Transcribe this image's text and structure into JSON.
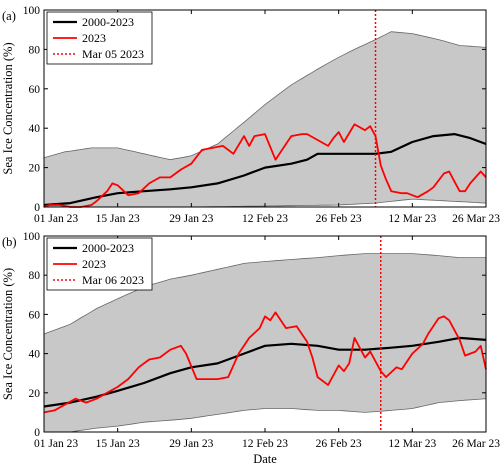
{
  "chart_data": [
    {
      "type": "line",
      "panel_label": "(a)",
      "ylabel": "Sea Ice Concentration (%)",
      "xlabel": "",
      "ylim": [
        0,
        100
      ],
      "yticks": [
        0,
        20,
        40,
        60,
        80,
        100
      ],
      "xlim": [
        "2023-01-01",
        "2023-03-26"
      ],
      "xticks": [
        {
          "date": "2023-01-01",
          "label": "01 Jan 23"
        },
        {
          "date": "2023-01-15",
          "label": "15 Jan 23"
        },
        {
          "date": "2023-01-29",
          "label": "29 Jan 23"
        },
        {
          "date": "2023-02-12",
          "label": "12 Feb 23"
        },
        {
          "date": "2023-02-26",
          "label": "26 Feb 23"
        },
        {
          "date": "2023-03-12",
          "label": "12 Mar 23"
        },
        {
          "date": "2023-03-26",
          "label": "26 Mar 23"
        }
      ],
      "legend": {
        "position": "top-left",
        "entries": [
          "2000-2023",
          "2023",
          "Mar 05 2023"
        ]
      },
      "band": {
        "color": "#c8c8c8",
        "upper": [
          [
            "2023-01-01",
            25
          ],
          [
            "2023-01-05",
            28
          ],
          [
            "2023-01-10",
            30
          ],
          [
            "2023-01-15",
            30
          ],
          [
            "2023-01-20",
            27
          ],
          [
            "2023-01-25",
            24
          ],
          [
            "2023-01-29",
            26
          ],
          [
            "2023-02-03",
            32
          ],
          [
            "2023-02-08",
            43
          ],
          [
            "2023-02-12",
            52
          ],
          [
            "2023-02-17",
            62
          ],
          [
            "2023-02-22",
            70
          ],
          [
            "2023-02-26",
            76
          ],
          [
            "2023-03-01",
            80
          ],
          [
            "2023-03-05",
            85
          ],
          [
            "2023-03-08",
            89
          ],
          [
            "2023-03-12",
            88
          ],
          [
            "2023-03-17",
            85
          ],
          [
            "2023-03-21",
            82
          ],
          [
            "2023-03-26",
            81
          ]
        ],
        "lower": [
          [
            "2023-01-01",
            0
          ],
          [
            "2023-01-15",
            0
          ],
          [
            "2023-01-29",
            0
          ],
          [
            "2023-02-12",
            0.5
          ],
          [
            "2023-02-26",
            1
          ],
          [
            "2023-03-05",
            2
          ],
          [
            "2023-03-12",
            4
          ],
          [
            "2023-03-19",
            3
          ],
          [
            "2023-03-26",
            2
          ]
        ]
      },
      "series": [
        {
          "name": "2000-2023",
          "color": "#000000",
          "points": [
            [
              "2023-01-01",
              1
            ],
            [
              "2023-01-06",
              2
            ],
            [
              "2023-01-11",
              5
            ],
            [
              "2023-01-15",
              7
            ],
            [
              "2023-01-20",
              8
            ],
            [
              "2023-01-25",
              9
            ],
            [
              "2023-01-29",
              10
            ],
            [
              "2023-02-03",
              12
            ],
            [
              "2023-02-08",
              16
            ],
            [
              "2023-02-12",
              20
            ],
            [
              "2023-02-17",
              22
            ],
            [
              "2023-02-20",
              24
            ],
            [
              "2023-02-22",
              27
            ],
            [
              "2023-02-26",
              27
            ],
            [
              "2023-03-02",
              27
            ],
            [
              "2023-03-05",
              27
            ],
            [
              "2023-03-08",
              28
            ],
            [
              "2023-03-12",
              33
            ],
            [
              "2023-03-16",
              36
            ],
            [
              "2023-03-20",
              37
            ],
            [
              "2023-03-23",
              35
            ],
            [
              "2023-03-26",
              32
            ]
          ]
        },
        {
          "name": "2023",
          "color": "#ff0000",
          "points": [
            [
              "2023-01-01",
              0
            ],
            [
              "2023-01-02",
              1
            ],
            [
              "2023-01-04",
              1
            ],
            [
              "2023-01-06",
              0
            ],
            [
              "2023-01-08",
              0
            ],
            [
              "2023-01-10",
              1
            ],
            [
              "2023-01-11",
              3
            ],
            [
              "2023-01-13",
              8
            ],
            [
              "2023-01-14",
              12
            ],
            [
              "2023-01-15",
              11
            ],
            [
              "2023-01-17",
              6
            ],
            [
              "2023-01-19",
              7
            ],
            [
              "2023-01-21",
              12
            ],
            [
              "2023-01-23",
              15
            ],
            [
              "2023-01-25",
              15
            ],
            [
              "2023-01-27",
              19
            ],
            [
              "2023-01-29",
              22
            ],
            [
              "2023-01-31",
              29
            ],
            [
              "2023-02-02",
              30
            ],
            [
              "2023-02-04",
              31
            ],
            [
              "2023-02-06",
              27
            ],
            [
              "2023-02-08",
              36
            ],
            [
              "2023-02-09",
              31
            ],
            [
              "2023-02-10",
              36
            ],
            [
              "2023-02-12",
              37
            ],
            [
              "2023-02-14",
              24
            ],
            [
              "2023-02-15",
              28
            ],
            [
              "2023-02-17",
              36
            ],
            [
              "2023-02-19",
              37
            ],
            [
              "2023-02-20",
              37
            ],
            [
              "2023-02-22",
              34
            ],
            [
              "2023-02-24",
              31
            ],
            [
              "2023-02-25",
              35
            ],
            [
              "2023-02-26",
              38
            ],
            [
              "2023-02-27",
              33
            ],
            [
              "2023-03-01",
              42
            ],
            [
              "2023-03-03",
              39
            ],
            [
              "2023-03-04",
              41
            ],
            [
              "2023-03-05",
              36
            ],
            [
              "2023-03-06",
              21
            ],
            [
              "2023-03-07",
              14
            ],
            [
              "2023-03-08",
              8
            ],
            [
              "2023-03-10",
              7
            ],
            [
              "2023-03-11",
              7
            ],
            [
              "2023-03-13",
              5
            ],
            [
              "2023-03-15",
              8
            ],
            [
              "2023-03-16",
              10
            ],
            [
              "2023-03-18",
              17
            ],
            [
              "2023-03-19",
              18
            ],
            [
              "2023-03-20",
              13
            ],
            [
              "2023-03-21",
              8
            ],
            [
              "2023-03-22",
              8
            ],
            [
              "2023-03-23",
              12
            ],
            [
              "2023-03-25",
              18
            ],
            [
              "2023-03-26",
              15
            ]
          ]
        }
      ],
      "vline": {
        "name": "Mar 05 2023",
        "date": "2023-03-05",
        "color": "#ff0000",
        "style": "dotted"
      }
    },
    {
      "type": "line",
      "panel_label": "(b)",
      "ylabel": "Sea Ice Concentration (%)",
      "xlabel": "Date",
      "ylim": [
        0,
        100
      ],
      "yticks": [
        0,
        20,
        40,
        60,
        80,
        100
      ],
      "xlim": [
        "2023-01-01",
        "2023-03-26"
      ],
      "xticks": [
        {
          "date": "2023-01-01",
          "label": "01 Jan 23"
        },
        {
          "date": "2023-01-15",
          "label": "15 Jan 23"
        },
        {
          "date": "2023-01-29",
          "label": "29 Jan 23"
        },
        {
          "date": "2023-02-12",
          "label": "12 Feb 23"
        },
        {
          "date": "2023-02-26",
          "label": "26 Feb 23"
        },
        {
          "date": "2023-03-12",
          "label": "12 Mar 23"
        },
        {
          "date": "2023-03-26",
          "label": "26 Mar 23"
        }
      ],
      "legend": {
        "position": "top-left",
        "entries": [
          "2000-2023",
          "2023",
          "Mar 06 2023"
        ]
      },
      "band": {
        "color": "#c8c8c8",
        "upper": [
          [
            "2023-01-01",
            50
          ],
          [
            "2023-01-06",
            55
          ],
          [
            "2023-01-11",
            63
          ],
          [
            "2023-01-15",
            68
          ],
          [
            "2023-01-20",
            74
          ],
          [
            "2023-01-25",
            78
          ],
          [
            "2023-01-29",
            80
          ],
          [
            "2023-02-03",
            83
          ],
          [
            "2023-02-08",
            86
          ],
          [
            "2023-02-12",
            87
          ],
          [
            "2023-02-17",
            88
          ],
          [
            "2023-02-22",
            89
          ],
          [
            "2023-02-26",
            90
          ],
          [
            "2023-03-03",
            91
          ],
          [
            "2023-03-08",
            91
          ],
          [
            "2023-03-12",
            91
          ],
          [
            "2023-03-17",
            90
          ],
          [
            "2023-03-21",
            89
          ],
          [
            "2023-03-26",
            89
          ]
        ],
        "lower": [
          [
            "2023-01-01",
            0
          ],
          [
            "2023-01-06",
            0
          ],
          [
            "2023-01-11",
            2
          ],
          [
            "2023-01-15",
            3
          ],
          [
            "2023-01-20",
            5
          ],
          [
            "2023-01-25",
            6
          ],
          [
            "2023-01-29",
            7
          ],
          [
            "2023-02-03",
            9
          ],
          [
            "2023-02-08",
            11
          ],
          [
            "2023-02-12",
            12
          ],
          [
            "2023-02-17",
            12
          ],
          [
            "2023-02-22",
            11
          ],
          [
            "2023-02-26",
            11
          ],
          [
            "2023-03-03",
            10
          ],
          [
            "2023-03-08",
            11
          ],
          [
            "2023-03-12",
            12
          ],
          [
            "2023-03-17",
            15
          ],
          [
            "2023-03-21",
            16
          ],
          [
            "2023-03-26",
            17
          ]
        ]
      },
      "series": [
        {
          "name": "2000-2023",
          "color": "#000000",
          "points": [
            [
              "2023-01-01",
              13
            ],
            [
              "2023-01-06",
              15
            ],
            [
              "2023-01-11",
              18
            ],
            [
              "2023-01-15",
              21
            ],
            [
              "2023-01-20",
              25
            ],
            [
              "2023-01-25",
              30
            ],
            [
              "2023-01-29",
              33
            ],
            [
              "2023-02-03",
              35
            ],
            [
              "2023-02-08",
              40
            ],
            [
              "2023-02-12",
              44
            ],
            [
              "2023-02-17",
              45
            ],
            [
              "2023-02-22",
              44
            ],
            [
              "2023-02-26",
              42
            ],
            [
              "2023-03-03",
              42
            ],
            [
              "2023-03-08",
              43
            ],
            [
              "2023-03-12",
              44
            ],
            [
              "2023-03-17",
              46
            ],
            [
              "2023-03-21",
              48
            ],
            [
              "2023-03-26",
              47
            ]
          ]
        },
        {
          "name": "2023",
          "color": "#ff0000",
          "points": [
            [
              "2023-01-01",
              10
            ],
            [
              "2023-01-03",
              11
            ],
            [
              "2023-01-05",
              14
            ],
            [
              "2023-01-07",
              17
            ],
            [
              "2023-01-09",
              15
            ],
            [
              "2023-01-11",
              17
            ],
            [
              "2023-01-13",
              20
            ],
            [
              "2023-01-15",
              23
            ],
            [
              "2023-01-17",
              27
            ],
            [
              "2023-01-19",
              33
            ],
            [
              "2023-01-21",
              37
            ],
            [
              "2023-01-23",
              38
            ],
            [
              "2023-01-25",
              42
            ],
            [
              "2023-01-27",
              44
            ],
            [
              "2023-01-28",
              40
            ],
            [
              "2023-01-30",
              27
            ],
            [
              "2023-02-01",
              27
            ],
            [
              "2023-02-03",
              27
            ],
            [
              "2023-02-05",
              28
            ],
            [
              "2023-02-07",
              40
            ],
            [
              "2023-02-09",
              48
            ],
            [
              "2023-02-11",
              53
            ],
            [
              "2023-02-12",
              59
            ],
            [
              "2023-02-13",
              57
            ],
            [
              "2023-02-14",
              61
            ],
            [
              "2023-02-16",
              53
            ],
            [
              "2023-02-18",
              54
            ],
            [
              "2023-02-20",
              46
            ],
            [
              "2023-02-21",
              38
            ],
            [
              "2023-02-22",
              28
            ],
            [
              "2023-02-24",
              24
            ],
            [
              "2023-02-26",
              34
            ],
            [
              "2023-02-27",
              31
            ],
            [
              "2023-02-28",
              35
            ],
            [
              "2023-03-01",
              48
            ],
            [
              "2023-03-03",
              38
            ],
            [
              "2023-03-04",
              41
            ],
            [
              "2023-03-06",
              31
            ],
            [
              "2023-03-07",
              28
            ],
            [
              "2023-03-09",
              33
            ],
            [
              "2023-03-10",
              32
            ],
            [
              "2023-03-12",
              40
            ],
            [
              "2023-03-14",
              45
            ],
            [
              "2023-03-15",
              50
            ],
            [
              "2023-03-17",
              58
            ],
            [
              "2023-03-18",
              59
            ],
            [
              "2023-03-19",
              57
            ],
            [
              "2023-03-21",
              47
            ],
            [
              "2023-03-22",
              39
            ],
            [
              "2023-03-24",
              41
            ],
            [
              "2023-03-25",
              44
            ],
            [
              "2023-03-26",
              32
            ]
          ]
        }
      ],
      "vline": {
        "name": "Mar 06 2023",
        "date": "2023-03-06",
        "color": "#ff0000",
        "style": "dotted"
      }
    }
  ]
}
